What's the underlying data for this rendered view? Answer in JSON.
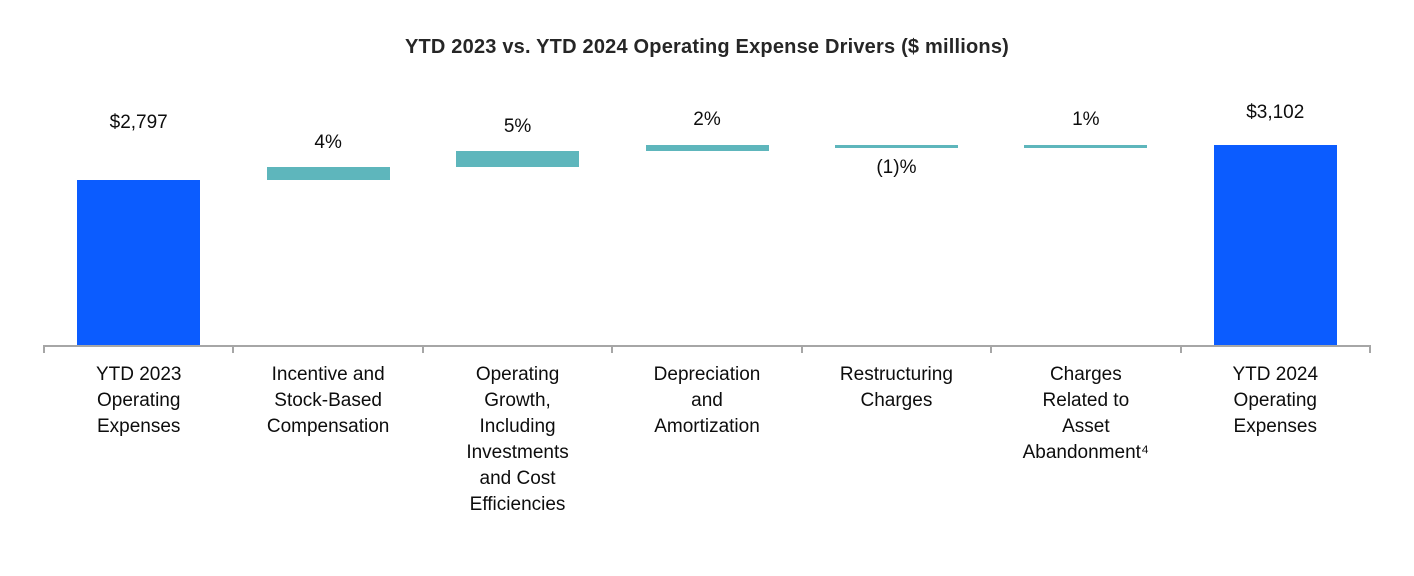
{
  "chart_data": {
    "type": "waterfall",
    "title": "YTD 2023 vs. YTD 2024 Operating Expense Drivers ($ millions)",
    "unit": "$ millions",
    "legend": "none",
    "grid": "off",
    "colors": {
      "total": "#0b5cff",
      "delta": "#5eb6bc",
      "axis": "#a6a6a6"
    },
    "columns": [
      {
        "label": "YTD 2023\nOperating\nExpenses",
        "value": 2797,
        "value_label": "$2,797",
        "type": "total",
        "label_position": "above"
      },
      {
        "label": "Incentive and\nStock-Based\nCompensation",
        "pct": 4,
        "value_label": "4%",
        "type": "delta",
        "label_position": "above"
      },
      {
        "label": "Operating\nGrowth,\nIncluding\nInvestments\nand Cost\nEfficiencies",
        "pct": 5,
        "value_label": "5%",
        "type": "delta",
        "label_position": "above"
      },
      {
        "label": "Depreciation\nand\nAmortization",
        "pct": 2,
        "value_label": "2%",
        "type": "delta",
        "label_position": "above"
      },
      {
        "label": "Restructuring\nCharges",
        "pct": -1,
        "value_label": "(1)%",
        "type": "delta",
        "label_position": "below"
      },
      {
        "label": "Charges\nRelated to\nAsset\nAbandonment⁴",
        "pct": 1,
        "value_label": "1%",
        "type": "delta",
        "label_position": "above"
      },
      {
        "label": "YTD 2024\nOperating\nExpenses",
        "value": 3102,
        "value_label": "$3,102",
        "type": "total",
        "label_position": "above"
      }
    ]
  }
}
